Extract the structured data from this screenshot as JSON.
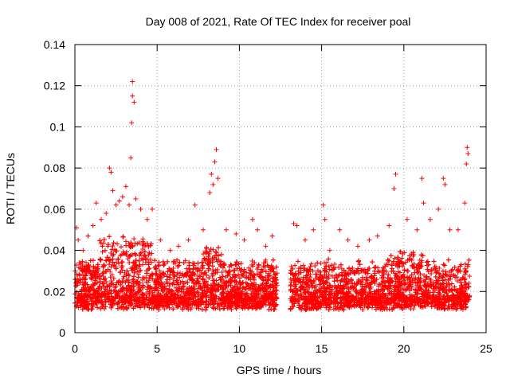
{
  "chart_data": {
    "type": "scatter",
    "title": "Day 008 of 2021, Rate Of TEC Index for receiver poal",
    "xlabel": "GPS time / hours",
    "ylabel": "ROTI / TECUs",
    "xlim": [
      0,
      25
    ],
    "ylim": [
      0,
      0.14
    ],
    "xticks": [
      0,
      5,
      10,
      15,
      20,
      25
    ],
    "xtick_labels": [
      "0",
      "5",
      "10",
      "15",
      "20",
      "25"
    ],
    "yticks": [
      0,
      0.02,
      0.04,
      0.06,
      0.08,
      0.1,
      0.12,
      0.14
    ],
    "ytick_labels": [
      "0",
      "0.02",
      "0.04",
      "0.06",
      "0.08",
      "0.1",
      "0.12",
      "0.14"
    ],
    "grid": true,
    "marker": "+",
    "color": "#ff0000",
    "data_gap_hours": [
      12.3,
      13.1
    ],
    "series": [
      {
        "values": [
          [
            0.1,
            0.051
          ],
          [
            0.2,
            0.045
          ],
          [
            0.5,
            0.04
          ],
          [
            0.8,
            0.047
          ],
          [
            1.1,
            0.052
          ],
          [
            1.3,
            0.063
          ],
          [
            1.6,
            0.055
          ],
          [
            1.9,
            0.058
          ],
          [
            2.1,
            0.08
          ],
          [
            2.2,
            0.078
          ],
          [
            2.3,
            0.069
          ],
          [
            2.5,
            0.062
          ],
          [
            2.7,
            0.064
          ],
          [
            2.9,
            0.066
          ],
          [
            3.1,
            0.071
          ],
          [
            3.3,
            0.062
          ],
          [
            3.4,
            0.085
          ],
          [
            3.45,
            0.102
          ],
          [
            3.5,
            0.115
          ],
          [
            3.5,
            0.122
          ],
          [
            3.6,
            0.112
          ],
          [
            3.7,
            0.065
          ],
          [
            4.0,
            0.06
          ],
          [
            4.4,
            0.055
          ],
          [
            4.7,
            0.06
          ],
          [
            5.2,
            0.045
          ],
          [
            5.8,
            0.04
          ],
          [
            6.3,
            0.042
          ],
          [
            6.9,
            0.045
          ],
          [
            7.3,
            0.062
          ],
          [
            7.8,
            0.05
          ],
          [
            8.2,
            0.068
          ],
          [
            8.3,
            0.077
          ],
          [
            8.4,
            0.072
          ],
          [
            8.5,
            0.083
          ],
          [
            8.6,
            0.089
          ],
          [
            8.7,
            0.075
          ],
          [
            9.2,
            0.05
          ],
          [
            9.8,
            0.048
          ],
          [
            10.3,
            0.045
          ],
          [
            10.8,
            0.055
          ],
          [
            11.1,
            0.05
          ],
          [
            11.6,
            0.042
          ],
          [
            12.0,
            0.047
          ],
          [
            13.3,
            0.053
          ],
          [
            13.5,
            0.052
          ],
          [
            14.0,
            0.045
          ],
          [
            14.5,
            0.05
          ],
          [
            15.1,
            0.062
          ],
          [
            15.2,
            0.055
          ],
          [
            15.5,
            0.04
          ],
          [
            16.1,
            0.05
          ],
          [
            16.6,
            0.045
          ],
          [
            17.2,
            0.042
          ],
          [
            17.9,
            0.045
          ],
          [
            18.4,
            0.047
          ],
          [
            19.1,
            0.052
          ],
          [
            19.4,
            0.07
          ],
          [
            19.5,
            0.077
          ],
          [
            20.2,
            0.055
          ],
          [
            20.8,
            0.05
          ],
          [
            21.1,
            0.075
          ],
          [
            21.2,
            0.063
          ],
          [
            21.6,
            0.055
          ],
          [
            22.1,
            0.06
          ],
          [
            22.4,
            0.075
          ],
          [
            22.5,
            0.072
          ],
          [
            22.8,
            0.05
          ],
          [
            23.3,
            0.05
          ],
          [
            23.7,
            0.063
          ],
          [
            23.8,
            0.082
          ],
          [
            23.85,
            0.09
          ],
          [
            23.9,
            0.087
          ]
        ]
      }
    ]
  }
}
